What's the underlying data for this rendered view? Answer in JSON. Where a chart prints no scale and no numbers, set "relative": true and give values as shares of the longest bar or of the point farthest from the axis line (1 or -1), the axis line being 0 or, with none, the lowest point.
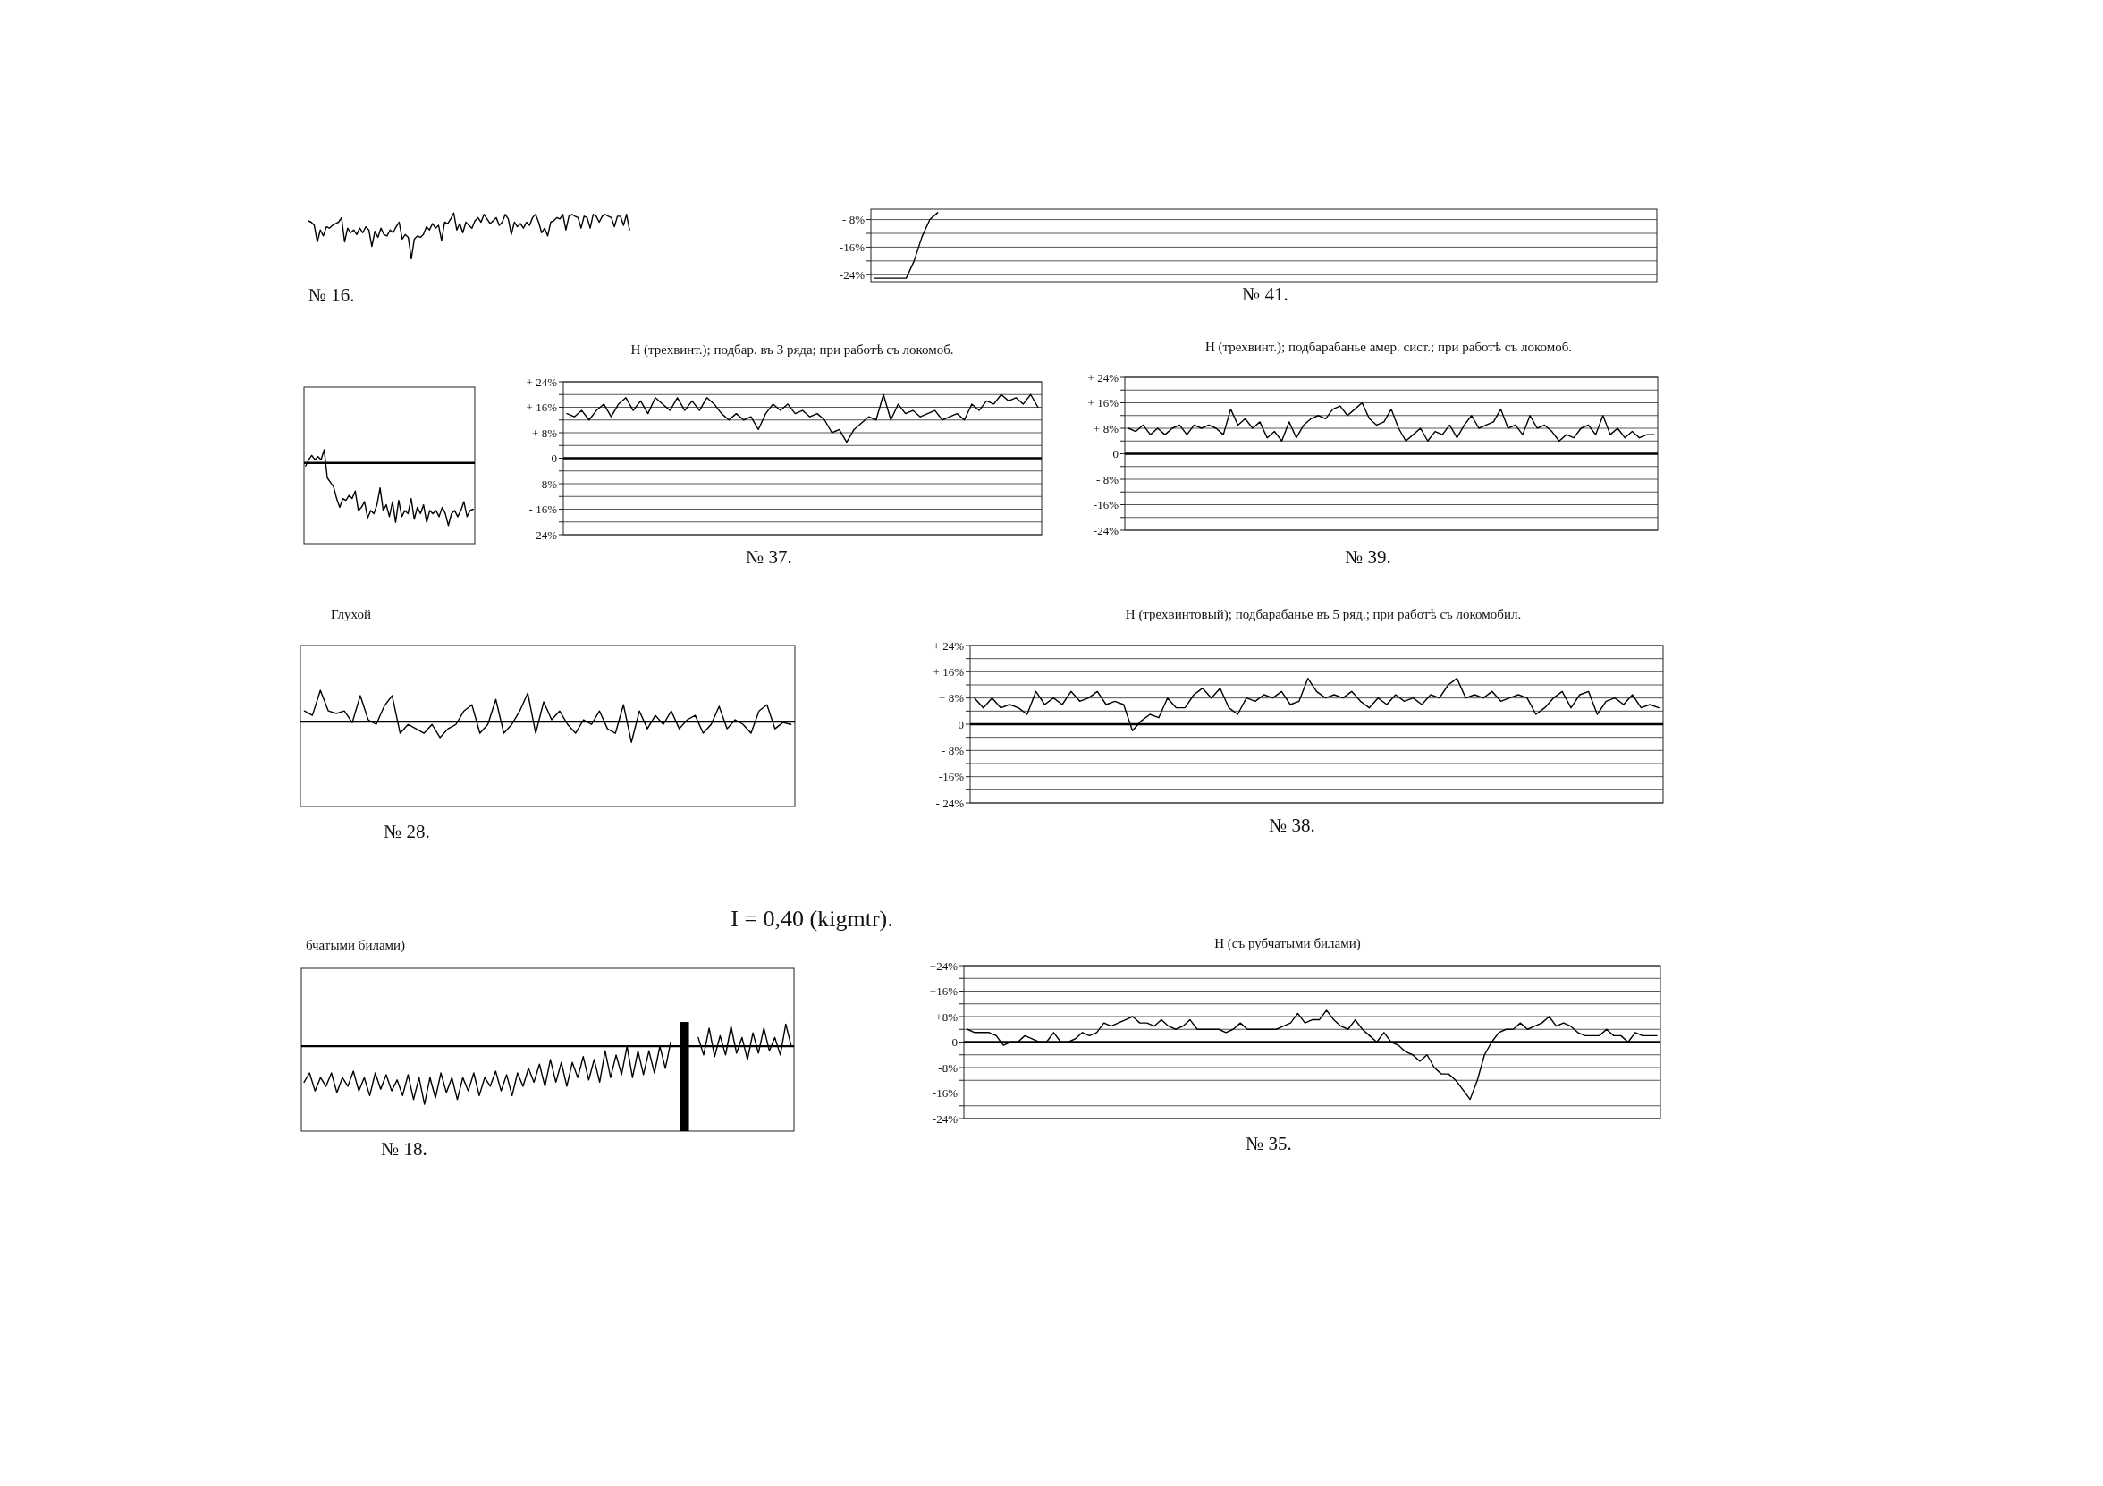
{
  "chart_data": [
    {
      "type": "line",
      "relative": true,
      "tick_labels": false,
      "color": "#000000",
      "annotations": [
        "№ 16."
      ],
      "categories": [
        null,
        null,
        null,
        null,
        null,
        null,
        null,
        null,
        null,
        null,
        null,
        null,
        null,
        null,
        null,
        null,
        null,
        null,
        null,
        null,
        null,
        null,
        null,
        null,
        null,
        null,
        null,
        null,
        null,
        null,
        null,
        null,
        null,
        null,
        null,
        null,
        null,
        null,
        null,
        null,
        null,
        null,
        null,
        null,
        null,
        null,
        null,
        null,
        null,
        null,
        null,
        null,
        null,
        null,
        null,
        null,
        null,
        null,
        null,
        null,
        null,
        null,
        null,
        null,
        null,
        null,
        null,
        null,
        null,
        null,
        null,
        null,
        null,
        null,
        null,
        null,
        null,
        null,
        null,
        null,
        null,
        null,
        null,
        null,
        null,
        null,
        null,
        null,
        null,
        null,
        null,
        null,
        null,
        null,
        null,
        null,
        null,
        null,
        null,
        null,
        null,
        null,
        null,
        null,
        null,
        null,
        null,
        null,
        null,
        null,
        null,
        null,
        null,
        null,
        null,
        null,
        null,
        null,
        null,
        null,
        null,
        null,
        null,
        null,
        null,
        null,
        null,
        null
      ],
      "values": [
        0.83,
        0.8,
        0.73,
        0.37,
        0.63,
        0.5,
        0.7,
        0.67,
        0.73,
        0.77,
        0.8,
        0.9,
        0.37,
        0.67,
        0.57,
        0.63,
        0.53,
        0.67,
        0.57,
        0.7,
        0.63,
        0.27,
        0.6,
        0.47,
        0.67,
        0.53,
        0.5,
        0.63,
        0.57,
        0.7,
        0.8,
        0.43,
        0.53,
        0.47,
        0,
        0.43,
        0.5,
        0.47,
        0.53,
        0.7,
        0.63,
        0.77,
        0.67,
        0.73,
        0.4,
        0.8,
        0.77,
        0.87,
        1,
        0.63,
        0.77,
        0.57,
        0.8,
        0.73,
        0.67,
        0.83,
        0.9,
        0.8,
        0.97,
        0.87,
        0.77,
        0.83,
        0.9,
        0.73,
        0.8,
        0.97,
        0.87,
        0.53,
        0.8,
        0.7,
        0.77,
        0.67,
        0.8,
        0.73,
        0.9,
        0.97,
        0.8,
        0.57,
        0.67,
        0.5,
        0.8,
        0.83,
        0.9,
        0.87,
        0.97,
        0.63,
        0.93,
        0.97,
        0.93,
        0.9,
        0.67,
        0.93,
        0.9,
        0.67,
        0.97,
        0.93,
        0.8,
        0.93,
        0.97,
        0.93,
        0.9,
        0.7,
        0.93,
        0.93,
        0.73,
        0.97,
        0.63,
        null,
        null,
        null,
        null,
        null,
        null,
        null,
        null,
        null,
        null,
        null,
        null,
        null,
        null,
        null,
        null,
        null,
        null,
        null,
        null,
        null
      ]
    },
    {
      "type": "line",
      "tick_labels": "y",
      "grid": "y",
      "color": "#000000",
      "annotations": [
        "№ 41."
      ],
      "ylim": [
        -26,
        -5
      ],
      "yticks": [
        {
          "value": -8,
          "label": "- 8%"
        },
        {
          "value": -12,
          "label": null
        },
        {
          "value": -16,
          "label": "-16%"
        },
        {
          "value": -20,
          "label": null
        },
        {
          "value": -24,
          "label": "-24%"
        }
      ],
      "categories": [
        null,
        null,
        null,
        null,
        null,
        null,
        null,
        null,
        null,
        null,
        null,
        null,
        null,
        null,
        null,
        null,
        null,
        null,
        null,
        null,
        null,
        null,
        null,
        null,
        null,
        null,
        null,
        null,
        null,
        null,
        null,
        null,
        null,
        null,
        null,
        null,
        null,
        null,
        null,
        null,
        null,
        null,
        null,
        null,
        null,
        null,
        null,
        null,
        null,
        null,
        null,
        null,
        null,
        null,
        null,
        null,
        null,
        null,
        null,
        null,
        null,
        null,
        null,
        null,
        null,
        null,
        null,
        null,
        null,
        null,
        null,
        null,
        null,
        null,
        null,
        null,
        null,
        null,
        null,
        null,
        null,
        null,
        null,
        null,
        null,
        null,
        null,
        null,
        null,
        null,
        null,
        null,
        null,
        null,
        null,
        null,
        null,
        null,
        null,
        null
      ],
      "values": [
        -25,
        -25,
        -25,
        -25,
        -25,
        -20,
        -13,
        -8,
        -6,
        null,
        null,
        null,
        null,
        null,
        null,
        null,
        null,
        null,
        null,
        null,
        null,
        null,
        null,
        null,
        null,
        null,
        null,
        null,
        null,
        null,
        null,
        null,
        null,
        null,
        null,
        null,
        null,
        null,
        null,
        null,
        null,
        null,
        null,
        null,
        null,
        null,
        null,
        null,
        null,
        null,
        null,
        null,
        null,
        null,
        null,
        null,
        null,
        null,
        null,
        null,
        null,
        null,
        null,
        null,
        null,
        null,
        null,
        null,
        null,
        null,
        null,
        null,
        null,
        null,
        null,
        null,
        null,
        null,
        null,
        null,
        null,
        null,
        null,
        null,
        null,
        null,
        null,
        null,
        null,
        null,
        null,
        null,
        null,
        null,
        null,
        null,
        null,
        null,
        null,
        null
      ]
    },
    {
      "type": "line",
      "relative": true,
      "tick_labels": false,
      "color": "#000000",
      "categories": [
        null,
        null,
        null,
        null,
        null,
        null,
        null,
        null,
        null,
        null,
        null,
        null,
        null,
        null,
        null,
        null,
        null,
        null,
        null,
        null,
        null,
        null,
        null,
        null,
        null,
        null,
        null,
        null,
        null,
        null,
        null,
        null,
        null,
        null,
        null,
        null,
        null,
        null,
        null,
        null,
        null,
        null,
        null,
        null,
        null,
        null,
        null,
        null,
        null,
        null,
        null,
        null,
        null,
        null,
        null
      ],
      "values": [
        -0.05,
        0.05,
        0.12,
        0.05,
        0.1,
        0.05,
        0.21,
        -0.24,
        -0.31,
        -0.38,
        -0.57,
        -0.71,
        -0.57,
        -0.6,
        -0.52,
        -0.57,
        -0.45,
        -0.76,
        -0.71,
        -0.62,
        -0.88,
        -0.76,
        -0.81,
        -0.67,
        -0.4,
        -0.76,
        -0.67,
        -0.86,
        -0.62,
        -0.95,
        -0.6,
        -0.86,
        -0.76,
        -0.81,
        -0.57,
        -0.9,
        -0.71,
        -0.81,
        -0.67,
        -0.95,
        -0.76,
        -0.81,
        -0.76,
        -0.86,
        -0.71,
        -0.81,
        -1,
        -0.81,
        -0.76,
        -0.86,
        -0.76,
        -0.62,
        -0.86,
        -0.76,
        -0.74
      ]
    },
    {
      "type": "line",
      "tick_labels": "y",
      "grid": "y",
      "color": "#000000",
      "title": "Н (трехвинт.); подбар. въ 3 ряда; при работѣ съ локомоб.",
      "annotations": [
        "№ 37."
      ],
      "ylim": [
        -24,
        24
      ],
      "yticks": [
        {
          "value": 24,
          "label": "+ 24%"
        },
        {
          "value": 20,
          "label": null
        },
        {
          "value": 16,
          "label": "+ 16%"
        },
        {
          "value": 12,
          "label": null
        },
        {
          "value": 8,
          "label": "+ 8%"
        },
        {
          "value": 4,
          "label": null
        },
        {
          "value": 0,
          "label": "0"
        },
        {
          "value": -4,
          "label": null
        },
        {
          "value": -8,
          "label": "- 8%"
        },
        {
          "value": -12,
          "label": null
        },
        {
          "value": -16,
          "label": "- 16%"
        },
        {
          "value": -20,
          "label": null
        },
        {
          "value": -24,
          "label": "- 24%"
        }
      ],
      "categories": [
        null,
        null,
        null,
        null,
        null,
        null,
        null,
        null,
        null,
        null,
        null,
        null,
        null,
        null,
        null,
        null,
        null,
        null,
        null,
        null,
        null,
        null,
        null,
        null,
        null,
        null,
        null,
        null,
        null,
        null,
        null,
        null,
        null,
        null,
        null,
        null,
        null,
        null,
        null,
        null,
        null,
        null,
        null,
        null,
        null,
        null,
        null,
        null,
        null,
        null,
        null,
        null,
        null,
        null,
        null,
        null,
        null,
        null,
        null,
        null,
        null,
        null,
        null,
        null,
        null
      ],
      "values": [
        14,
        13,
        15,
        12,
        15,
        17,
        13,
        17,
        19,
        15,
        18,
        14,
        19,
        17,
        15,
        19,
        15,
        18,
        15,
        19,
        17,
        14,
        12,
        14,
        12,
        13,
        9,
        14,
        17,
        15,
        17,
        14,
        15,
        13,
        14,
        12,
        8,
        9,
        5,
        9,
        11,
        13,
        12,
        20,
        12,
        17,
        14,
        15,
        13,
        14,
        15,
        12,
        13,
        14,
        12,
        17,
        15,
        18,
        17,
        20,
        18,
        19,
        17,
        20,
        16
      ]
    },
    {
      "type": "line",
      "tick_labels": "y",
      "grid": "y",
      "color": "#000000",
      "title": "Н (трехвинт.); подбарабанье амер. сист.; при работѣ съ локомоб.",
      "annotations": [
        "№ 39."
      ],
      "ylim": [
        -24,
        24
      ],
      "yticks": [
        {
          "value": 24,
          "label": "+ 24%"
        },
        {
          "value": 20,
          "label": null
        },
        {
          "value": 16,
          "label": "+ 16%"
        },
        {
          "value": 12,
          "label": null
        },
        {
          "value": 8,
          "label": "+ 8%"
        },
        {
          "value": 4,
          "label": null
        },
        {
          "value": 0,
          "label": "0"
        },
        {
          "value": -4,
          "label": null
        },
        {
          "value": -8,
          "label": "- 8%"
        },
        {
          "value": -12,
          "label": null
        },
        {
          "value": -16,
          "label": "-16%"
        },
        {
          "value": -20,
          "label": null
        },
        {
          "value": -24,
          "label": "-24%"
        }
      ],
      "categories": [
        null,
        null,
        null,
        null,
        null,
        null,
        null,
        null,
        null,
        null,
        null,
        null,
        null,
        null,
        null,
        null,
        null,
        null,
        null,
        null,
        null,
        null,
        null,
        null,
        null,
        null,
        null,
        null,
        null,
        null,
        null,
        null,
        null,
        null,
        null,
        null,
        null,
        null,
        null,
        null,
        null,
        null,
        null,
        null,
        null,
        null,
        null,
        null,
        null,
        null,
        null,
        null,
        null,
        null,
        null,
        null,
        null,
        null,
        null,
        null,
        null,
        null,
        null,
        null,
        null,
        null,
        null,
        null,
        null,
        null,
        null,
        null,
        null
      ],
      "values": [
        8,
        7,
        9,
        6,
        8,
        6,
        8,
        9,
        6,
        9,
        8,
        9,
        8,
        6,
        14,
        9,
        11,
        8,
        10,
        5,
        7,
        4,
        10,
        5,
        9,
        11,
        12,
        11,
        14,
        15,
        12,
        14,
        16,
        11,
        9,
        10,
        14,
        8,
        4,
        6,
        8,
        4,
        7,
        6,
        9,
        5,
        9,
        12,
        8,
        9,
        10,
        14,
        8,
        9,
        6,
        12,
        8,
        9,
        7,
        4,
        6,
        5,
        8,
        9,
        6,
        12,
        6,
        8,
        5,
        7,
        5,
        6,
        6
      ]
    },
    {
      "type": "line",
      "relative": true,
      "tick_labels": false,
      "color": "#000000",
      "title": "Глухой",
      "annotations": [
        "№ 28."
      ],
      "categories": [
        null,
        null,
        null,
        null,
        null,
        null,
        null,
        null,
        null,
        null,
        null,
        null,
        null,
        null,
        null,
        null,
        null,
        null,
        null,
        null,
        null,
        null,
        null,
        null,
        null,
        null,
        null,
        null,
        null,
        null,
        null,
        null,
        null,
        null,
        null,
        null,
        null,
        null,
        null,
        null,
        null,
        null,
        null,
        null,
        null,
        null,
        null,
        null,
        null,
        null,
        null,
        null,
        null,
        null,
        null,
        null,
        null,
        null,
        null,
        null,
        null,
        null
      ],
      "values": [
        0.34,
        0.2,
        1,
        0.34,
        0.26,
        0.34,
        -0.03,
        0.83,
        0.06,
        -0.09,
        0.49,
        0.83,
        -0.37,
        -0.09,
        -0.23,
        -0.37,
        -0.09,
        -0.51,
        -0.23,
        -0.09,
        0.34,
        0.54,
        -0.37,
        -0.09,
        0.71,
        -0.37,
        -0.09,
        0.34,
        0.91,
        -0.37,
        0.63,
        0.06,
        0.34,
        -0.09,
        -0.37,
        0.06,
        -0.09,
        0.34,
        -0.23,
        -0.37,
        0.54,
        -0.66,
        0.34,
        -0.23,
        0.2,
        -0.09,
        0.34,
        -0.23,
        0.06,
        0.2,
        -0.37,
        -0.09,
        0.49,
        -0.23,
        0.06,
        -0.09,
        -0.37,
        0.34,
        0.54,
        -0.23,
        -0.03,
        -0.09
      ]
    },
    {
      "type": "line",
      "tick_labels": "y",
      "grid": "y",
      "color": "#000000",
      "title": "Н (трехвинтовый); подбарабанье въ 5 ряд.; при работѣ съ локомобил.",
      "annotations": [
        "№ 38."
      ],
      "ylim": [
        -24,
        24
      ],
      "yticks": [
        {
          "value": 24,
          "label": "+ 24%"
        },
        {
          "value": 20,
          "label": null
        },
        {
          "value": 16,
          "label": "+ 16%"
        },
        {
          "value": 12,
          "label": null
        },
        {
          "value": 8,
          "label": "+ 8%"
        },
        {
          "value": 4,
          "label": null
        },
        {
          "value": 0,
          "label": "0"
        },
        {
          "value": -4,
          "label": null
        },
        {
          "value": -8,
          "label": "- 8%"
        },
        {
          "value": -12,
          "label": null
        },
        {
          "value": -16,
          "label": "-16%"
        },
        {
          "value": -20,
          "label": null
        },
        {
          "value": -24,
          "label": "- 24%"
        }
      ],
      "categories": [
        null,
        null,
        null,
        null,
        null,
        null,
        null,
        null,
        null,
        null,
        null,
        null,
        null,
        null,
        null,
        null,
        null,
        null,
        null,
        null,
        null,
        null,
        null,
        null,
        null,
        null,
        null,
        null,
        null,
        null,
        null,
        null,
        null,
        null,
        null,
        null,
        null,
        null,
        null,
        null,
        null,
        null,
        null,
        null,
        null,
        null,
        null,
        null,
        null,
        null,
        null,
        null,
        null,
        null,
        null,
        null,
        null,
        null,
        null,
        null,
        null,
        null,
        null,
        null,
        null,
        null,
        null,
        null,
        null,
        null,
        null,
        null,
        null,
        null,
        null,
        null,
        null,
        null,
        null
      ],
      "values": [
        8,
        5,
        8,
        5,
        6,
        5,
        3,
        10,
        6,
        8,
        6,
        10,
        7,
        8,
        10,
        6,
        7,
        6,
        -2,
        1,
        3,
        2,
        8,
        5,
        5,
        9,
        11,
        8,
        11,
        5,
        3,
        8,
        7,
        9,
        8,
        10,
        6,
        7,
        14,
        10,
        8,
        9,
        8,
        10,
        7,
        5,
        8,
        6,
        9,
        7,
        8,
        6,
        9,
        8,
        12,
        14,
        8,
        9,
        8,
        10,
        7,
        8,
        9,
        8,
        3,
        5,
        8,
        10,
        5,
        9,
        10,
        3,
        7,
        8,
        6,
        9,
        5,
        6,
        5
      ]
    },
    {
      "type": "other",
      "title": "I = 0,40 (kigmtr)."
    },
    {
      "type": "line",
      "relative": true,
      "tick_labels": false,
      "title": "бчатыми билами)",
      "annotations": [
        "№ 18."
      ],
      "categories": [
        null,
        null,
        null,
        null,
        null,
        null,
        null,
        null,
        null,
        null,
        null,
        null,
        null,
        null,
        null,
        null,
        null,
        null,
        null,
        null,
        null,
        null,
        null,
        null,
        null,
        null,
        null,
        null,
        null,
        null,
        null,
        null,
        null,
        null,
        null,
        null,
        null,
        null,
        null,
        null,
        null,
        null,
        null,
        null,
        null,
        null,
        null,
        null,
        null,
        null,
        null,
        null,
        null,
        null,
        null,
        null,
        null,
        null,
        null,
        null,
        null,
        null,
        null,
        null,
        null,
        null,
        null,
        null,
        null,
        null,
        null,
        null,
        null,
        null,
        null,
        null,
        null,
        null,
        null,
        null,
        null,
        null,
        null,
        null,
        null,
        null,
        null,
        null,
        null,
        null
      ],
      "series": [
        {
          "color": "#000000",
          "values": [
            -0.62,
            -0.46,
            -0.77,
            -0.54,
            -0.69,
            -0.46,
            -0.8,
            -0.54,
            -0.69,
            -0.43,
            -0.77,
            -0.54,
            -0.85,
            -0.46,
            -0.74,
            -0.49,
            -0.77,
            -0.58,
            -0.85,
            -0.49,
            -0.92,
            -0.54,
            -1,
            -0.54,
            -0.89,
            -0.46,
            -0.8,
            -0.54,
            -0.92,
            -0.54,
            -0.77,
            -0.46,
            -0.85,
            -0.54,
            -0.69,
            -0.43,
            -0.77,
            -0.49,
            -0.85,
            -0.46,
            -0.69,
            -0.38,
            -0.62,
            -0.31,
            -0.69,
            -0.23,
            -0.62,
            -0.28,
            -0.69,
            -0.28,
            -0.54,
            -0.18,
            -0.58,
            -0.23,
            -0.62,
            -0.08,
            -0.54,
            -0.15,
            -0.49,
            0,
            -0.54,
            -0.08,
            -0.49,
            -0.08,
            -0.46,
            0,
            -0.38,
            0.08,
            null,
            null,
            null,
            null,
            null,
            null,
            null,
            null,
            null,
            null,
            null,
            null,
            null,
            null,
            null,
            null,
            null,
            null,
            null,
            null,
            null,
            null
          ]
        },
        {
          "color": "#000000",
          "values": [
            null,
            null,
            null,
            null,
            null,
            null,
            null,
            null,
            null,
            null,
            null,
            null,
            null,
            null,
            null,
            null,
            null,
            null,
            null,
            null,
            null,
            null,
            null,
            null,
            null,
            null,
            null,
            null,
            null,
            null,
            null,
            null,
            null,
            null,
            null,
            null,
            null,
            null,
            null,
            null,
            null,
            null,
            null,
            null,
            null,
            null,
            null,
            null,
            null,
            null,
            null,
            null,
            null,
            null,
            null,
            null,
            null,
            null,
            null,
            null,
            null,
            null,
            null,
            null,
            null,
            null,
            null,
            null,
            null,
            null,
            null,
            null,
            0.15,
            -0.15,
            0.31,
            -0.18,
            0.18,
            -0.15,
            0.34,
            -0.12,
            0.15,
            -0.23,
            0.23,
            -0.12,
            0.31,
            -0.08,
            0.15,
            -0.15,
            0.38,
            0
          ]
        }
      ]
    },
    {
      "type": "line",
      "tick_labels": "y",
      "grid": "y",
      "color": "#000000",
      "title": "Н (съ рубчатыми билами)",
      "annotations": [
        "№ 35."
      ],
      "ylim": [
        -24,
        24
      ],
      "yticks": [
        {
          "value": 24,
          "label": "+24%"
        },
        {
          "value": 20,
          "label": null
        },
        {
          "value": 16,
          "label": "+16%"
        },
        {
          "value": 12,
          "label": null
        },
        {
          "value": 8,
          "label": "+8%"
        },
        {
          "value": 4,
          "label": null
        },
        {
          "value": 0,
          "label": "0"
        },
        {
          "value": -4,
          "label": null
        },
        {
          "value": -8,
          "label": "-8%"
        },
        {
          "value": -12,
          "label": null
        },
        {
          "value": -16,
          "label": "-16%"
        },
        {
          "value": -20,
          "label": null
        },
        {
          "value": -24,
          "label": "-24%"
        }
      ],
      "categories": [
        null,
        null,
        null,
        null,
        null,
        null,
        null,
        null,
        null,
        null,
        null,
        null,
        null,
        null,
        null,
        null,
        null,
        null,
        null,
        null,
        null,
        null,
        null,
        null,
        null,
        null,
        null,
        null,
        null,
        null,
        null,
        null,
        null,
        null,
        null,
        null,
        null,
        null,
        null,
        null,
        null,
        null,
        null,
        null,
        null,
        null,
        null,
        null,
        null,
        null,
        null,
        null,
        null,
        null,
        null,
        null,
        null,
        null,
        null,
        null,
        null,
        null,
        null,
        null,
        null,
        null,
        null,
        null,
        null,
        null,
        null,
        null,
        null,
        null,
        null,
        null,
        null,
        null,
        null,
        null,
        null,
        null,
        null,
        null,
        null,
        null,
        null,
        null,
        null,
        null,
        null,
        null,
        null,
        null,
        null,
        null,
        null
      ],
      "values": [
        4,
        3,
        3,
        3,
        2,
        -1,
        0,
        0,
        2,
        1,
        0,
        0,
        3,
        0,
        0,
        1,
        3,
        2,
        3,
        6,
        5,
        6,
        7,
        8,
        6,
        6,
        5,
        7,
        5,
        4,
        5,
        7,
        4,
        4,
        4,
        4,
        3,
        4,
        6,
        4,
        4,
        4,
        4,
        4,
        5,
        6,
        9,
        6,
        7,
        7,
        10,
        7,
        5,
        4,
        7,
        4,
        2,
        0,
        3,
        0,
        -1,
        -3,
        -4,
        -6,
        -4,
        -8,
        -10,
        -10,
        -12,
        -15,
        -18,
        -12,
        -4,
        0,
        3,
        4,
        4,
        6,
        4,
        5,
        6,
        8,
        5,
        6,
        5,
        3,
        2,
        2,
        2,
        4,
        2,
        2,
        0,
        3,
        2,
        2,
        2
      ]
    }
  ]
}
